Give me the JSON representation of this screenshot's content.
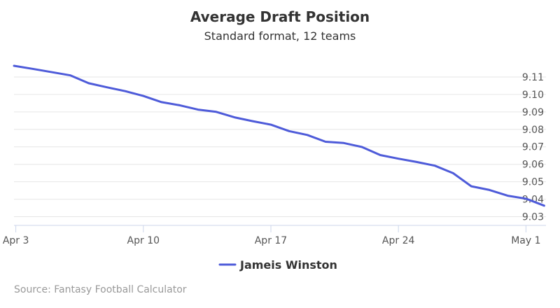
{
  "chart_data": {
    "type": "line",
    "title": "Average Draft Position",
    "subtitle": "Standard format, 12 teams",
    "xlabel": "",
    "ylabel": "",
    "x_ticks": [
      {
        "label": "Apr 3",
        "day": 3
      },
      {
        "label": "Apr 10",
        "day": 10
      },
      {
        "label": "Apr 17",
        "day": 17
      },
      {
        "label": "Apr 24",
        "day": 24
      },
      {
        "label": "May 1",
        "day": 31
      }
    ],
    "xlim": [
      2.9,
      32.1
    ],
    "y_ticks": [
      "9.03",
      "9.04",
      "9.05",
      "9.06",
      "9.07",
      "9.08",
      "9.09",
      "9.10",
      "9.11"
    ],
    "y_tick_values": [
      9.03,
      9.04,
      9.05,
      9.06,
      9.07,
      9.08,
      9.09,
      9.1,
      9.11
    ],
    "ylim": [
      9.118,
      9.025
    ],
    "y_reversed": true,
    "grid": true,
    "legend_position": "bottom-center",
    "series": [
      {
        "name": "Jameis Winston",
        "color": "#4e5bd9",
        "x": [
          2.9,
          4,
          5,
          6,
          7,
          8,
          9,
          10,
          11,
          12,
          13,
          14,
          15,
          16,
          17,
          18,
          19,
          20,
          21,
          22,
          23,
          24,
          25,
          26,
          27,
          28,
          29,
          30,
          31,
          32
        ],
        "values": [
          9.1164,
          9.1145,
          9.1127,
          9.1109,
          9.1064,
          9.1041,
          9.1019,
          9.0991,
          9.0956,
          9.0938,
          9.0913,
          9.09,
          9.0869,
          9.0847,
          9.0827,
          9.079,
          9.0768,
          9.0729,
          9.0722,
          9.0699,
          9.0653,
          9.0632,
          9.0613,
          9.0592,
          9.0549,
          9.0474,
          9.0453,
          9.042,
          9.0403,
          9.0363
        ]
      }
    ]
  },
  "credit": "Source: Fantasy Football Calculator"
}
